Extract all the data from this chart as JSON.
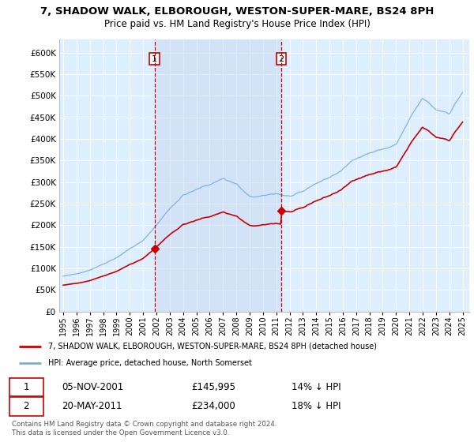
{
  "title": "7, SHADOW WALK, ELBOROUGH, WESTON-SUPER-MARE, BS24 8PH",
  "subtitle": "Price paid vs. HM Land Registry's House Price Index (HPI)",
  "legend_line1": "7, SHADOW WALK, ELBOROUGH, WESTON-SUPER-MARE, BS24 8PH (detached house)",
  "legend_line2": "HPI: Average price, detached house, North Somerset",
  "annotation1_date": "05-NOV-2001",
  "annotation1_price": "£145,995",
  "annotation1_hpi": "14% ↓ HPI",
  "annotation2_date": "20-MAY-2011",
  "annotation2_price": "£234,000",
  "annotation2_hpi": "18% ↓ HPI",
  "footer": "Contains HM Land Registry data © Crown copyright and database right 2024.\nThis data is licensed under the Open Government Licence v3.0.",
  "plot_bg": "#ddeeff",
  "plot_bg_between": "#cce0f5",
  "vline_color": "#cc0000",
  "hpi_color": "#7aabdb",
  "price_color": "#cc0000",
  "sale1_x": 2001.854,
  "sale1_y": 145995,
  "sale2_x": 2011.379,
  "sale2_y": 234000,
  "ylim": [
    0,
    630000
  ],
  "xlim": [
    1994.7,
    2025.5
  ]
}
